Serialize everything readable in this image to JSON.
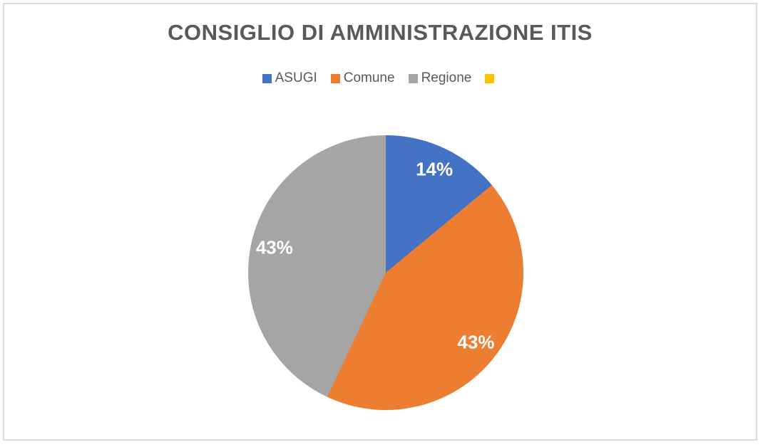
{
  "chart_data": {
    "type": "pie",
    "title": "CONSIGLIO DI AMMINISTRAZIONE ITIS",
    "start_angle_deg": 0,
    "direction": "clockwise",
    "legend_position": "top",
    "title_color": "#595959",
    "legend_text_color": "#595959",
    "data_label_color": "#FFFFFF",
    "frame_border_color": "#D9D9D9",
    "slices": [
      {
        "label": "ASUGI",
        "value": 14,
        "pct_label": "14%",
        "color": "#4472C4"
      },
      {
        "label": "Comune",
        "value": 43,
        "pct_label": "43%",
        "color": "#ED7D31"
      },
      {
        "label": "Regione",
        "value": 43,
        "pct_label": "43%",
        "color": "#A5A5A5"
      },
      {
        "label": "",
        "value": 0,
        "pct_label": "",
        "color": "#FFC000"
      }
    ]
  }
}
